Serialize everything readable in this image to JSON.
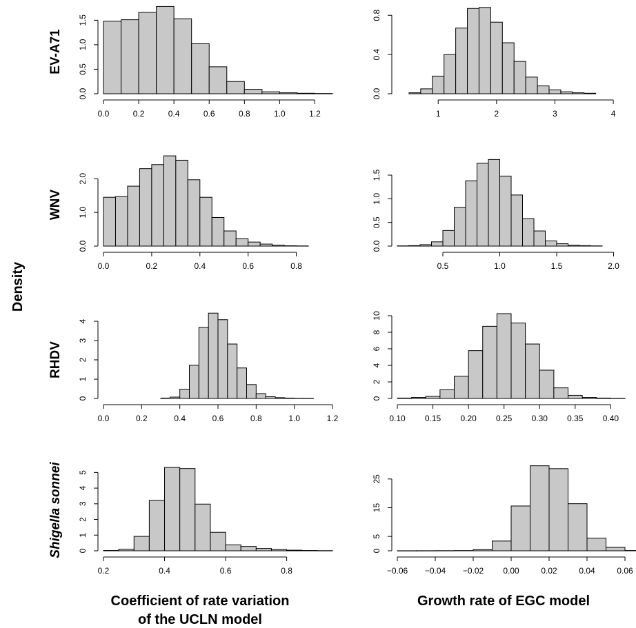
{
  "y_axis_title": "Density",
  "x_titles": {
    "left_line1": "Coefficient of rate variation",
    "left_line2": "of the UCLN model",
    "right": "Growth rate of EGC model"
  },
  "rows": [
    "EV-A71",
    "WNV",
    "RHDV",
    "Shigella sonnei"
  ],
  "chart_data": [
    {
      "type": "bar",
      "row": "EV-A71",
      "column": "UCLN",
      "bin_start": 0.0,
      "bin_width": 0.1,
      "values": [
        1.48,
        1.51,
        1.66,
        1.78,
        1.53,
        1.02,
        0.55,
        0.25,
        0.09,
        0.04,
        0.02,
        0.01,
        0.005
      ],
      "xlim": [
        0.0,
        1.3
      ],
      "ylim": [
        0,
        1.8
      ],
      "xticks": [
        "0.0",
        "0.2",
        "0.4",
        "0.6",
        "0.8",
        "1.0",
        "1.2"
      ],
      "yticks": [
        "0.0",
        "0.5",
        "1.0",
        "1.5"
      ]
    },
    {
      "type": "bar",
      "row": "EV-A71",
      "column": "EGC",
      "bin_start": 0.5,
      "bin_width": 0.2,
      "values": [
        0.01,
        0.05,
        0.18,
        0.4,
        0.67,
        0.87,
        0.88,
        0.73,
        0.52,
        0.33,
        0.17,
        0.08,
        0.04,
        0.02,
        0.01,
        0.005
      ],
      "xlim": [
        0.3,
        4.2
      ],
      "ylim": [
        0,
        0.9
      ],
      "xticks": [
        "1",
        "2",
        "3",
        "4"
      ],
      "yticks": [
        "0.0",
        "0.4",
        "0.8"
      ]
    },
    {
      "type": "bar",
      "row": "WNV",
      "column": "UCLN",
      "bin_start": 0.0,
      "bin_width": 0.05,
      "values": [
        1.45,
        1.47,
        1.78,
        2.3,
        2.42,
        2.68,
        2.55,
        1.97,
        1.45,
        0.85,
        0.45,
        0.22,
        0.12,
        0.06,
        0.03,
        0.01,
        0.005
      ],
      "xlim": [
        0.0,
        0.95
      ],
      "ylim": [
        0,
        2.6
      ],
      "xticks": [
        "0.0",
        "0.2",
        "0.4",
        "0.6",
        "0.8"
      ],
      "yticks": [
        "0.0",
        "1.0",
        "2.0"
      ]
    },
    {
      "type": "bar",
      "row": "WNV",
      "column": "EGC",
      "bin_start": 0.1,
      "bin_width": 0.1,
      "values": [
        0.005,
        0.01,
        0.03,
        0.09,
        0.33,
        0.82,
        1.38,
        1.75,
        1.83,
        1.48,
        1.08,
        0.58,
        0.32,
        0.11,
        0.05,
        0.02,
        0.01,
        0.005
      ],
      "xlim": [
        0.1,
        2.1
      ],
      "ylim": [
        0,
        1.85
      ],
      "xticks": [
        "0.5",
        "1.0",
        "1.5",
        "2.0"
      ],
      "yticks": [
        "0.0",
        "0.5",
        "1.0",
        "1.5"
      ]
    },
    {
      "type": "bar",
      "row": "RHDV",
      "column": "UCLN",
      "bin_start": 0.3,
      "bin_width": 0.05,
      "values": [
        0.02,
        0.07,
        0.48,
        1.72,
        3.68,
        4.42,
        4.08,
        2.82,
        1.58,
        0.72,
        0.25,
        0.09,
        0.04,
        0.02,
        0.01,
        0.005
      ],
      "xlim": [
        0.0,
        1.2
      ],
      "ylim": [
        0,
        4.5
      ],
      "xticks": [
        "0.0",
        "0.2",
        "0.4",
        "0.6",
        "0.8",
        "1.0",
        "1.2"
      ],
      "yticks": [
        "0",
        "1",
        "2",
        "3",
        "4"
      ]
    },
    {
      "type": "bar",
      "row": "RHDV",
      "column": "EGC",
      "bin_start": 0.1,
      "bin_width": 0.02,
      "values": [
        0.05,
        0.12,
        0.25,
        1.05,
        2.68,
        5.78,
        8.72,
        10.25,
        9.12,
        6.58,
        3.42,
        1.28,
        0.38,
        0.12,
        0.05,
        0.02
      ],
      "xlim": [
        0.1,
        0.42
      ],
      "ylim": [
        0,
        10.5
      ],
      "xticks": [
        "0.10",
        "0.15",
        "0.20",
        "0.25",
        "0.30",
        "0.35",
        "0.40"
      ],
      "yticks": [
        "0",
        "2",
        "4",
        "6",
        "8",
        "10"
      ]
    },
    {
      "type": "bar",
      "row": "Shigella sonnei",
      "column": "UCLN",
      "bin_start": 0.2,
      "bin_width": 0.05,
      "values": [
        0.02,
        0.1,
        0.92,
        3.22,
        5.32,
        5.25,
        2.98,
        1.18,
        0.38,
        0.28,
        0.15,
        0.08,
        0.04,
        0.02,
        0.01
      ],
      "xlim": [
        0.2,
        0.95
      ],
      "ylim": [
        0,
        5.5
      ],
      "xticks": [
        "0.2",
        "0.4",
        "0.6",
        "0.8"
      ],
      "yticks": [
        "0",
        "1",
        "2",
        "3",
        "4",
        "5"
      ]
    },
    {
      "type": "bar",
      "row": "Shigella sonnei",
      "column": "EGC",
      "bin_start": -0.06,
      "bin_width": 0.01,
      "values": [
        0.02,
        0.03,
        0.05,
        0.08,
        0.4,
        3.4,
        15.6,
        29.6,
        28.6,
        16.4,
        4.4,
        1.2,
        0.1
      ],
      "xlim": [
        -0.06,
        0.06
      ],
      "ylim": [
        0,
        30
      ],
      "xticks": [
        "−0.06",
        "−0.04",
        "−0.02",
        "0.00",
        "0.02",
        "0.04",
        "0.06"
      ],
      "yticks": [
        "0",
        "5",
        "15",
        "25"
      ]
    }
  ]
}
